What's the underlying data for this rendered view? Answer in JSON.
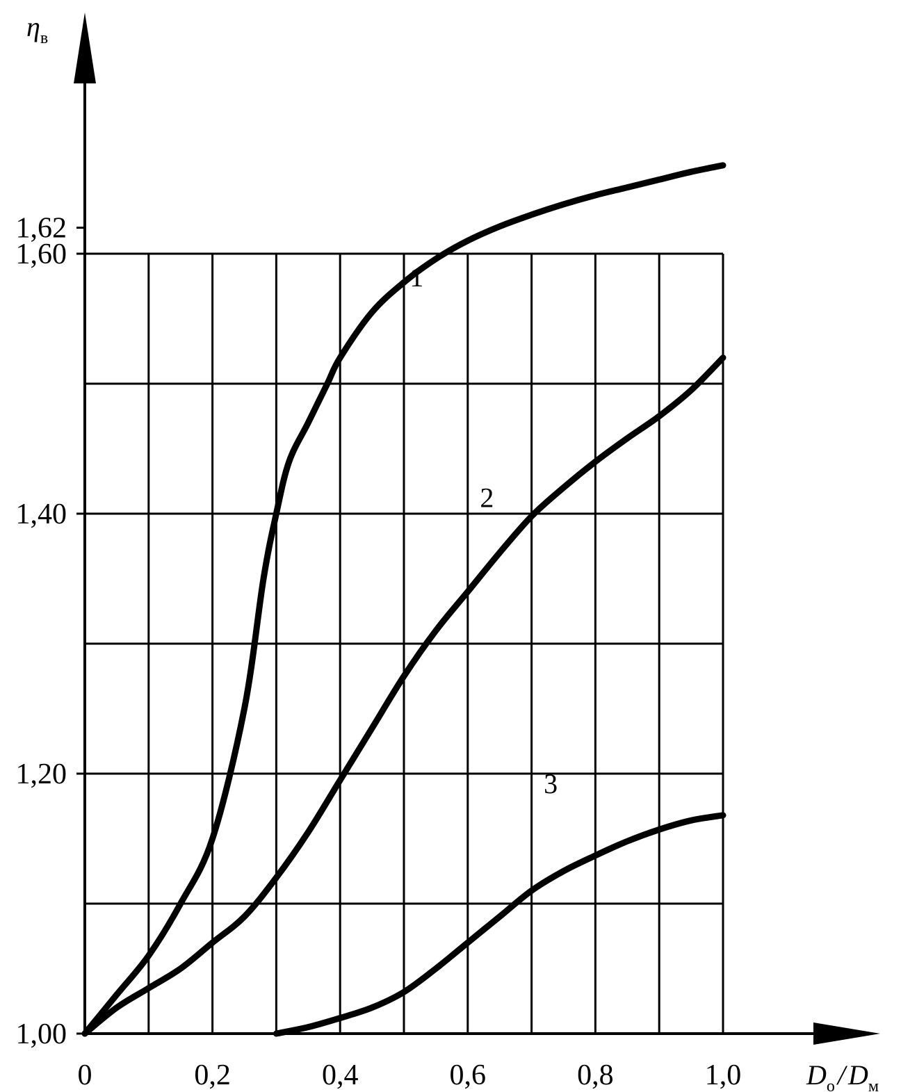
{
  "chart_data": {
    "type": "line",
    "title": "",
    "xlabel": "D",
    "xlabel_sub_numerator": "о",
    "xlabel_divider": "/",
    "xlabel_denominator": "D",
    "xlabel_sub_denominator": "м",
    "ylabel": "η",
    "ylabel_sub": "в",
    "xlim": [
      0,
      1.0
    ],
    "ylim": [
      1.0,
      1.6
    ],
    "x_ticks": [
      {
        "value": 0,
        "label": "0"
      },
      {
        "value": 0.2,
        "label": "0,2"
      },
      {
        "value": 0.4,
        "label": "0,4"
      },
      {
        "value": 0.6,
        "label": "0,6"
      },
      {
        "value": 0.8,
        "label": "0,8"
      },
      {
        "value": 1.0,
        "label": "1,0"
      }
    ],
    "y_ticks": [
      {
        "value": 1.0,
        "label": "1,00"
      },
      {
        "value": 1.2,
        "label": "1,20"
      },
      {
        "value": 1.4,
        "label": "1,40"
      },
      {
        "value": 1.6,
        "label": "1,60"
      },
      {
        "value": 1.62,
        "label": "1,62"
      }
    ],
    "grid": true,
    "grid_x_step": 0.1,
    "grid_y_step": 0.1,
    "series": [
      {
        "name": "1",
        "x": [
          0,
          0.05,
          0.1,
          0.15,
          0.2,
          0.25,
          0.28,
          0.3,
          0.32,
          0.35,
          0.38,
          0.4,
          0.45,
          0.5,
          0.55,
          0.6,
          0.65,
          0.7,
          0.75,
          0.8,
          0.85,
          0.9,
          0.95,
          1.0
        ],
        "y": [
          1.0,
          1.03,
          1.06,
          1.1,
          1.15,
          1.25,
          1.35,
          1.4,
          1.44,
          1.47,
          1.5,
          1.52,
          1.555,
          1.578,
          1.596,
          1.61,
          1.621,
          1.63,
          1.638,
          1.645,
          1.651,
          1.657,
          1.663,
          1.668
        ],
        "label_at": {
          "x": 0.52,
          "y": 1.575
        }
      },
      {
        "name": "2",
        "x": [
          0,
          0.05,
          0.1,
          0.15,
          0.2,
          0.25,
          0.3,
          0.35,
          0.4,
          0.45,
          0.5,
          0.55,
          0.6,
          0.65,
          0.7,
          0.75,
          0.8,
          0.85,
          0.9,
          0.95,
          1.0
        ],
        "y": [
          1.0,
          1.02,
          1.035,
          1.05,
          1.07,
          1.09,
          1.12,
          1.155,
          1.195,
          1.235,
          1.275,
          1.31,
          1.34,
          1.37,
          1.398,
          1.42,
          1.44,
          1.458,
          1.475,
          1.495,
          1.52
        ],
        "label_at": {
          "x": 0.63,
          "y": 1.405
        }
      },
      {
        "name": "3",
        "x": [
          0.3,
          0.35,
          0.4,
          0.45,
          0.5,
          0.55,
          0.6,
          0.65,
          0.7,
          0.75,
          0.8,
          0.85,
          0.9,
          0.95,
          1.0
        ],
        "y": [
          1.0,
          1.005,
          1.012,
          1.02,
          1.032,
          1.05,
          1.07,
          1.09,
          1.11,
          1.125,
          1.137,
          1.148,
          1.157,
          1.164,
          1.168
        ],
        "label_at": {
          "x": 0.73,
          "y": 1.185
        }
      }
    ]
  }
}
